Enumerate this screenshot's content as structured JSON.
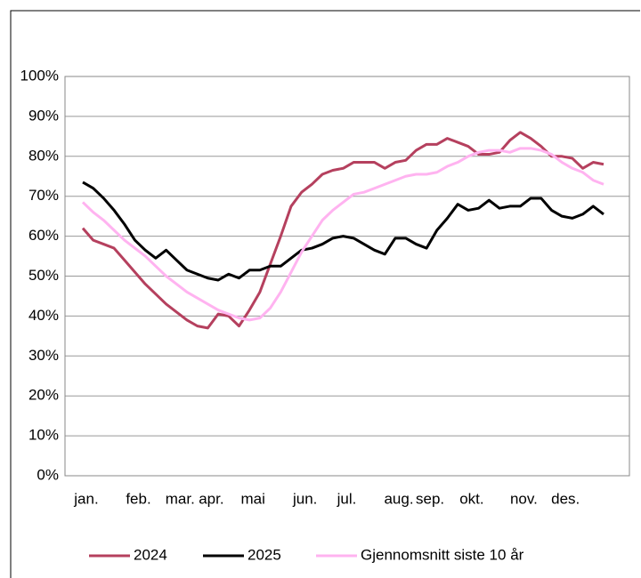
{
  "chart_data": {
    "type": "line",
    "categories": [
      "jan.",
      null,
      null,
      null,
      null,
      "feb.",
      null,
      null,
      null,
      "mar.",
      null,
      null,
      "apr.",
      null,
      null,
      null,
      "mai",
      null,
      null,
      null,
      null,
      "jun.",
      null,
      null,
      null,
      "jul.",
      null,
      null,
      null,
      null,
      "aug.",
      null,
      null,
      "sep.",
      null,
      null,
      null,
      "okt.",
      null,
      null,
      null,
      null,
      "nov.",
      null,
      null,
      null,
      "des.",
      null,
      null,
      null,
      null
    ],
    "series": [
      {
        "name": "2024",
        "color": "#b5405e",
        "values": [
          62,
          59,
          58,
          57,
          54,
          51,
          48,
          45.5,
          43,
          41,
          39,
          37.5,
          37,
          40.5,
          40,
          37.5,
          41.5,
          46,
          53,
          60,
          67.5,
          71,
          73,
          75.5,
          76.5,
          77,
          78.5,
          78.5,
          78.5,
          77,
          78.5,
          79,
          81.5,
          83,
          83,
          84.5,
          83.5,
          82.5,
          80.5,
          80.5,
          81,
          84,
          86,
          84.5,
          82.5,
          80,
          80,
          79.5,
          77,
          78.5,
          78
        ]
      },
      {
        "name": "2025",
        "color": "#000000",
        "values": [
          73.5,
          72,
          69.5,
          66.5,
          63,
          59,
          56.5,
          54.5,
          56.5,
          54,
          51.5,
          50.5,
          49.5,
          49,
          50.5,
          49.5,
          51.5,
          51.5,
          52.5,
          52.5,
          54.5,
          56.5,
          57,
          58,
          59.5,
          60,
          59.5,
          58,
          56.5,
          55.5,
          59.5,
          59.5,
          58,
          57,
          61.5,
          64.5,
          68,
          66.5,
          67,
          69,
          67,
          67.5,
          67.5,
          69.5,
          69.5,
          66.5,
          65,
          64.5,
          65.5,
          67.5,
          65.5
        ]
      },
      {
        "name": "Gjennomsnitt siste 10 år",
        "color": "#ffb3f0",
        "values": [
          68.5,
          66,
          64,
          61.5,
          59,
          57,
          55,
          52.5,
          50,
          48,
          46,
          44.5,
          43,
          41.5,
          40.5,
          39.5,
          39,
          39.5,
          42,
          46,
          51,
          56,
          60,
          64,
          66.5,
          68.5,
          70.5,
          71,
          72,
          73,
          74,
          75,
          75.5,
          75.5,
          76,
          77.5,
          78.5,
          80,
          81,
          81.5,
          81.5,
          81,
          82,
          82,
          81.5,
          80.5,
          78.5,
          77,
          76,
          74,
          73
        ]
      }
    ],
    "ylim": [
      0,
      100
    ],
    "yticks": [
      {
        "value": 0,
        "label": "0%"
      },
      {
        "value": 10,
        "label": "10%"
      },
      {
        "value": 20,
        "label": "20%"
      },
      {
        "value": 30,
        "label": "30%"
      },
      {
        "value": 40,
        "label": "40%"
      },
      {
        "value": 50,
        "label": "50%"
      },
      {
        "value": 60,
        "label": "60%"
      },
      {
        "value": 70,
        "label": "70%"
      },
      {
        "value": 80,
        "label": "80%"
      },
      {
        "value": 90,
        "label": "90%"
      },
      {
        "value": 100,
        "label": "100%"
      }
    ],
    "grid": true,
    "legend": "bottom"
  }
}
